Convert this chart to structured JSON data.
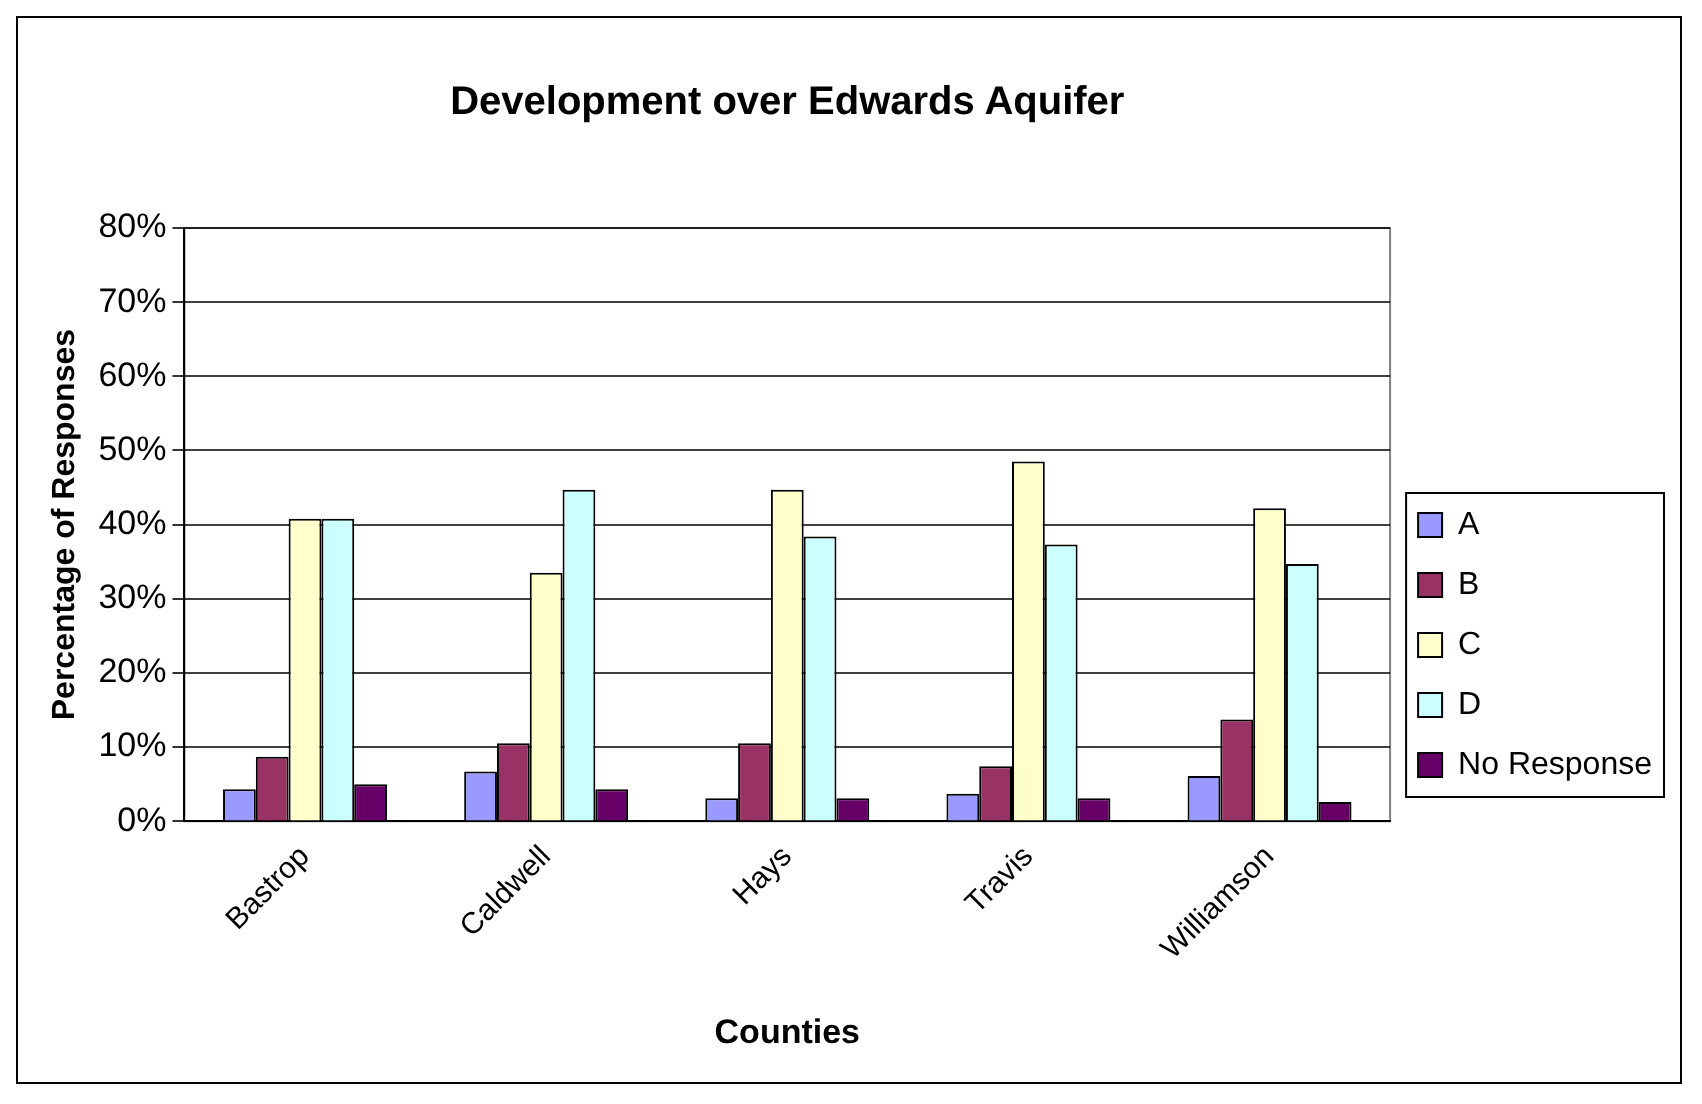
{
  "chart_data": {
    "type": "bar",
    "title": "Development over Edwards Aquifer",
    "xlabel": "Counties",
    "ylabel": "Percentage of Responses",
    "categories": [
      "Bastrop",
      "Caldwell",
      "Hays",
      "Travis",
      "Williamson"
    ],
    "series": [
      {
        "name": "A",
        "color": "#9999ff",
        "values": [
          4.3,
          6.7,
          3.1,
          3.7,
          6.1
        ]
      },
      {
        "name": "B",
        "color": "#993366",
        "values": [
          8.7,
          10.5,
          10.5,
          7.4,
          13.7
        ]
      },
      {
        "name": "C",
        "color": "#ffffcc",
        "values": [
          40.8,
          33.5,
          44.7,
          48.5,
          42.2
        ]
      },
      {
        "name": "D",
        "color": "#ccffff",
        "values": [
          40.8,
          44.7,
          38.4,
          37.3,
          34.7
        ]
      },
      {
        "name": "No Response",
        "color": "#660066",
        "values": [
          5.0,
          4.3,
          3.1,
          3.1,
          2.6
        ]
      }
    ],
    "ylim": [
      0,
      80
    ],
    "yticks": [
      {
        "value": 0,
        "label": "0%"
      },
      {
        "value": 10,
        "label": "10%"
      },
      {
        "value": 20,
        "label": "20%"
      },
      {
        "value": 30,
        "label": "30%"
      },
      {
        "value": 40,
        "label": "40%"
      },
      {
        "value": 50,
        "label": "50%"
      },
      {
        "value": 60,
        "label": "60%"
      },
      {
        "value": 70,
        "label": "70%"
      },
      {
        "value": 80,
        "label": "80%"
      }
    ],
    "grid": "y",
    "legend": "right"
  }
}
